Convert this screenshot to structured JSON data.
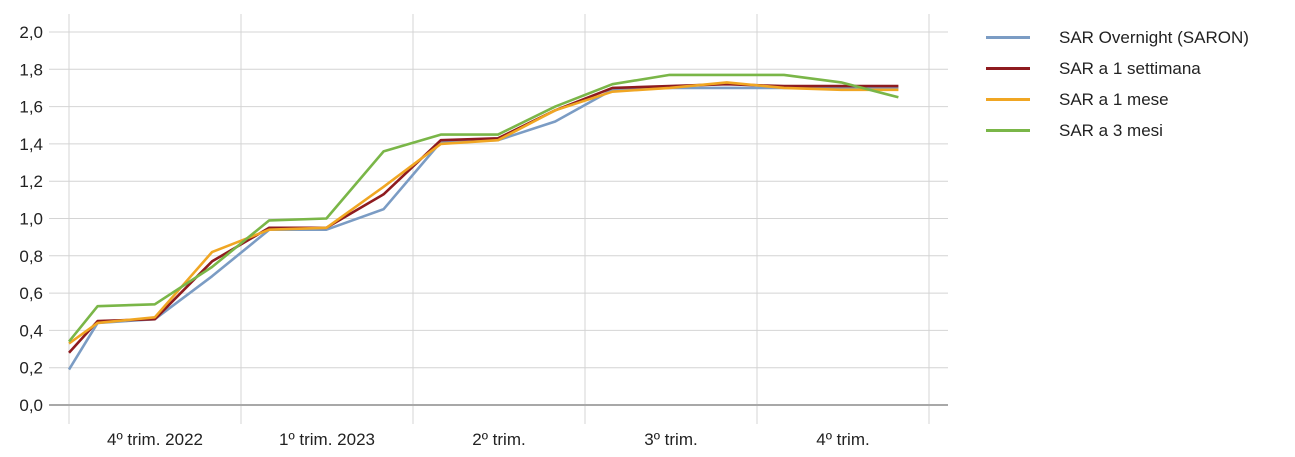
{
  "chart_data": {
    "type": "line",
    "title": "",
    "xlabel": "",
    "ylabel": "",
    "ylim": [
      0,
      2
    ],
    "yticks": [
      "2,0",
      "1,8",
      "1,6",
      "1,4",
      "1,2",
      "1,0",
      "0,8",
      "0,6",
      "0,4",
      "0,2",
      "0,0"
    ],
    "quarters": [
      "4º trim. 2022",
      "1º trim. 2023",
      "2º trim.",
      "3º trim.",
      "4º trim."
    ],
    "grid": true,
    "legend_position": "right",
    "x": [
      0,
      0.5,
      1,
      1.5,
      2,
      2.5,
      3,
      3.5,
      4,
      4.5,
      5,
      5.5,
      6,
      6.5,
      7,
      7.5,
      8,
      8.5,
      9,
      9.5,
      10,
      10.5,
      11,
      11.5,
      12,
      12.5,
      13,
      13.5,
      14,
      14.5,
      15,
      15.5,
      16,
      16.5,
      17,
      17.5,
      18,
      18.5,
      19,
      19.5,
      20,
      20.5,
      21,
      21.5,
      22,
      22.5,
      23,
      23.5,
      24,
      24.5,
      25,
      25.5,
      26,
      26.5,
      27,
      27.5,
      28,
      28.5,
      29,
      29.5
    ],
    "series": [
      {
        "name": "SAR Overnight (SARON)",
        "color": "#7b9cc4",
        "points": [
          [
            0,
            0.19
          ],
          [
            1,
            0.44
          ],
          [
            3,
            0.46
          ],
          [
            5,
            0.69
          ],
          [
            7,
            0.94
          ],
          [
            9,
            0.94
          ],
          [
            11,
            1.05
          ],
          [
            13,
            1.41
          ],
          [
            15,
            1.42
          ],
          [
            17,
            1.52
          ],
          [
            19,
            1.69
          ],
          [
            21,
            1.7
          ],
          [
            23,
            1.7
          ],
          [
            25,
            1.7
          ],
          [
            27,
            1.7
          ],
          [
            29,
            1.7
          ]
        ]
      },
      {
        "name": "SAR a 1 settimana",
        "color": "#8e1b1f",
        "points": [
          [
            0,
            0.28
          ],
          [
            1,
            0.45
          ],
          [
            3,
            0.46
          ],
          [
            5,
            0.77
          ],
          [
            7,
            0.95
          ],
          [
            9,
            0.95
          ],
          [
            11,
            1.13
          ],
          [
            13,
            1.42
          ],
          [
            15,
            1.43
          ],
          [
            17,
            1.58
          ],
          [
            19,
            1.7
          ],
          [
            21,
            1.71
          ],
          [
            23,
            1.72
          ],
          [
            25,
            1.71
          ],
          [
            27,
            1.71
          ],
          [
            29,
            1.71
          ]
        ]
      },
      {
        "name": "SAR a 1 mese",
        "color": "#f0a623",
        "points": [
          [
            0,
            0.33
          ],
          [
            1,
            0.44
          ],
          [
            3,
            0.47
          ],
          [
            5,
            0.82
          ],
          [
            7,
            0.94
          ],
          [
            9,
            0.95
          ],
          [
            11,
            1.17
          ],
          [
            13,
            1.4
          ],
          [
            15,
            1.42
          ],
          [
            17,
            1.58
          ],
          [
            19,
            1.68
          ],
          [
            21,
            1.7
          ],
          [
            23,
            1.73
          ],
          [
            25,
            1.7
          ],
          [
            27,
            1.69
          ],
          [
            29,
            1.69
          ]
        ]
      },
      {
        "name": "SAR a 3 mesi",
        "color": "#7ab648",
        "points": [
          [
            0,
            0.34
          ],
          [
            1,
            0.53
          ],
          [
            3,
            0.54
          ],
          [
            5,
            0.74
          ],
          [
            7,
            0.99
          ],
          [
            9,
            1.0
          ],
          [
            11,
            1.36
          ],
          [
            13,
            1.45
          ],
          [
            15,
            1.45
          ],
          [
            17,
            1.6
          ],
          [
            19,
            1.72
          ],
          [
            21,
            1.77
          ],
          [
            23,
            1.77
          ],
          [
            25,
            1.77
          ],
          [
            27,
            1.73
          ],
          [
            29,
            1.65
          ]
        ]
      }
    ]
  }
}
